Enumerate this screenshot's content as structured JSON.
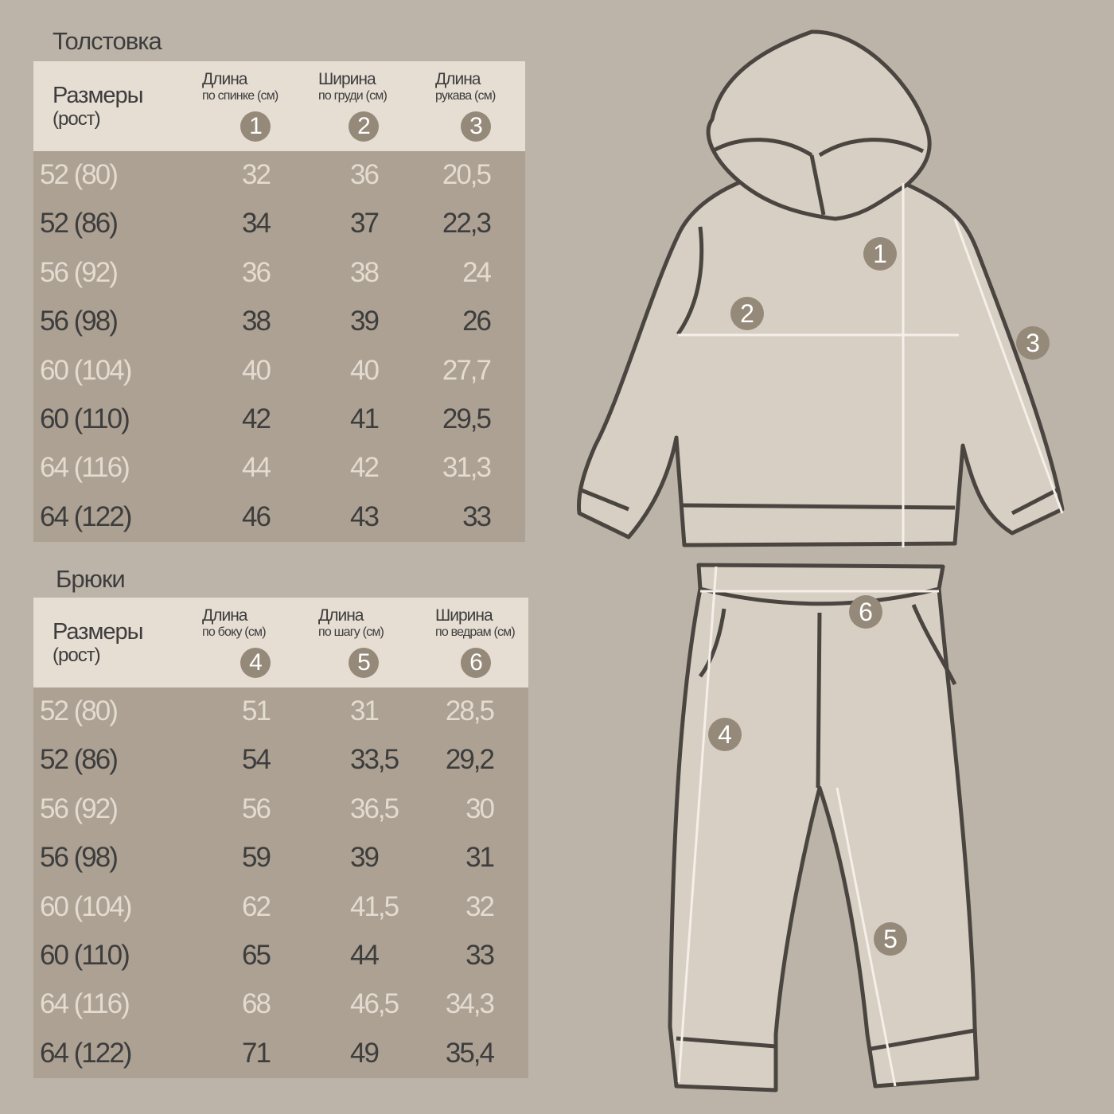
{
  "hoodie": {
    "title": "Толстовка",
    "size_label": "Размеры",
    "size_sub": "(рост)",
    "columns": [
      {
        "label": "Длина",
        "sub": "по спинке (см)",
        "num": "1"
      },
      {
        "label": "Ширина",
        "sub": "по груди (см)",
        "num": "2"
      },
      {
        "label": "Длина",
        "sub": "рукава (см)",
        "num": "3"
      }
    ],
    "rows": [
      [
        "52 (80)",
        "32",
        "36",
        "20,5"
      ],
      [
        "52 (86)",
        "34",
        "37",
        "22,3"
      ],
      [
        "56 (92)",
        "36",
        "38",
        "24"
      ],
      [
        "56 (98)",
        "38",
        "39",
        "26"
      ],
      [
        "60 (104)",
        "40",
        "40",
        "27,7"
      ],
      [
        "60 (110)",
        "42",
        "41",
        "29,5"
      ],
      [
        "64 (116)",
        "44",
        "42",
        "31,3"
      ],
      [
        "64 (122)",
        "46",
        "43",
        "33"
      ]
    ]
  },
  "pants": {
    "title": "Брюки",
    "size_label": "Размеры",
    "size_sub": "(рост)",
    "columns": [
      {
        "label": "Длина",
        "sub": "по боку (см)",
        "num": "4"
      },
      {
        "label": "Длина",
        "sub": "по шагу (см)",
        "num": "5"
      },
      {
        "label": "Ширина",
        "sub": "по ведрам (см)",
        "num": "6"
      }
    ],
    "rows": [
      [
        "52 (80)",
        "51",
        "31",
        "28,5"
      ],
      [
        "52 (86)",
        "54",
        "33,5",
        "29,2"
      ],
      [
        "56 (92)",
        "56",
        "36,5",
        "30"
      ],
      [
        "56 (98)",
        "59",
        "39",
        "31"
      ],
      [
        "60 (104)",
        "62",
        "41,5",
        "32"
      ],
      [
        "60 (110)",
        "65",
        "44",
        "33"
      ],
      [
        "64 (116)",
        "68",
        "46,5",
        "34,3"
      ],
      [
        "64 (122)",
        "71",
        "49",
        "35,4"
      ]
    ]
  },
  "markers": [
    "1",
    "2",
    "3",
    "4",
    "5",
    "6"
  ],
  "colors": {
    "background": "#bcb4a9",
    "header": "#e6ddd3",
    "body": "#aca193",
    "badge": "#958979",
    "text_dark": "#3d3d3d",
    "text_light": "#e4dbd1"
  }
}
